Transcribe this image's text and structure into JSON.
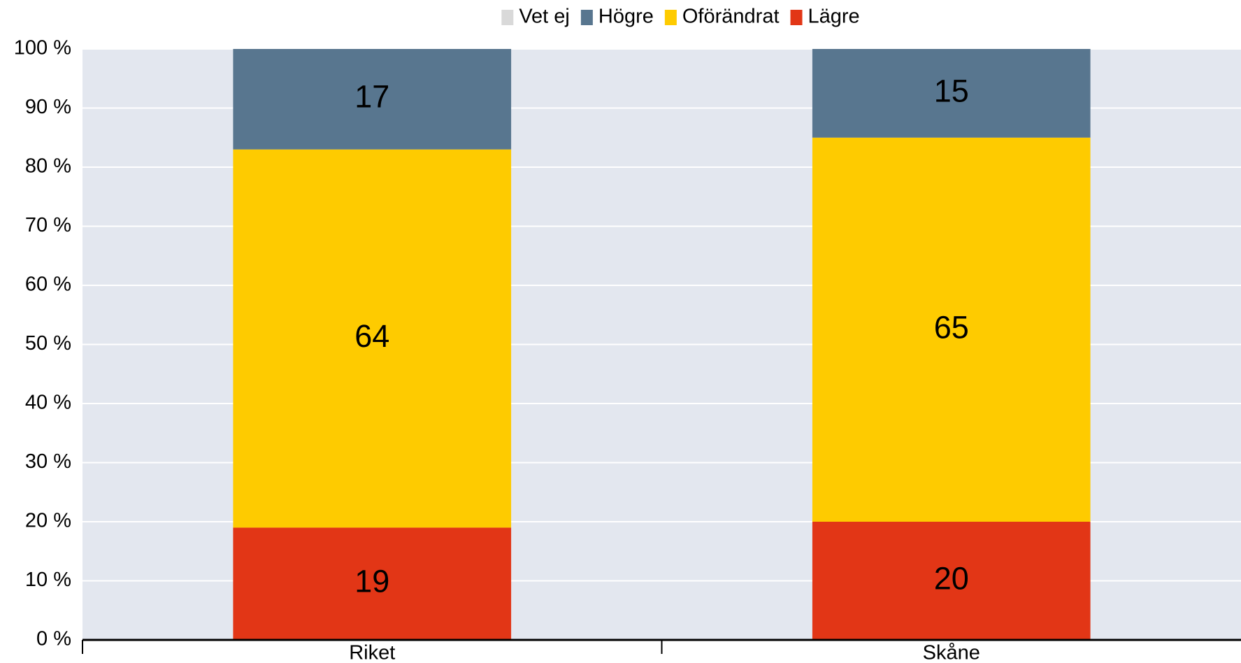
{
  "chart_data": {
    "type": "stacked_bar",
    "categories": [
      "Riket",
      "Skåne"
    ],
    "series": [
      {
        "name": "Vet ej",
        "color": "#d9d9d9",
        "values": [
          0,
          0
        ]
      },
      {
        "name": "Högre",
        "color": "#58768f",
        "values": [
          17,
          15
        ]
      },
      {
        "name": "Oförändrat",
        "color": "#fecb00",
        "values": [
          64,
          65
        ]
      },
      {
        "name": "Lägre",
        "color": "#e23616",
        "values": [
          19,
          20
        ]
      }
    ],
    "ylim": [
      0,
      100
    ],
    "yticks": [
      {
        "value": 0,
        "label": "0 %"
      },
      {
        "value": 10,
        "label": "10 %"
      },
      {
        "value": 20,
        "label": "20 %"
      },
      {
        "value": 30,
        "label": "30 %"
      },
      {
        "value": 40,
        "label": "40 %"
      },
      {
        "value": 50,
        "label": "50 %"
      },
      {
        "value": 60,
        "label": "60 %"
      },
      {
        "value": 70,
        "label": "70 %"
      },
      {
        "value": 80,
        "label": "80 %"
      },
      {
        "value": 90,
        "label": "90 %"
      },
      {
        "value": 100,
        "label": "100 %"
      }
    ],
    "grid": true,
    "legend": "top",
    "plot_background": "#e3e7ef"
  }
}
